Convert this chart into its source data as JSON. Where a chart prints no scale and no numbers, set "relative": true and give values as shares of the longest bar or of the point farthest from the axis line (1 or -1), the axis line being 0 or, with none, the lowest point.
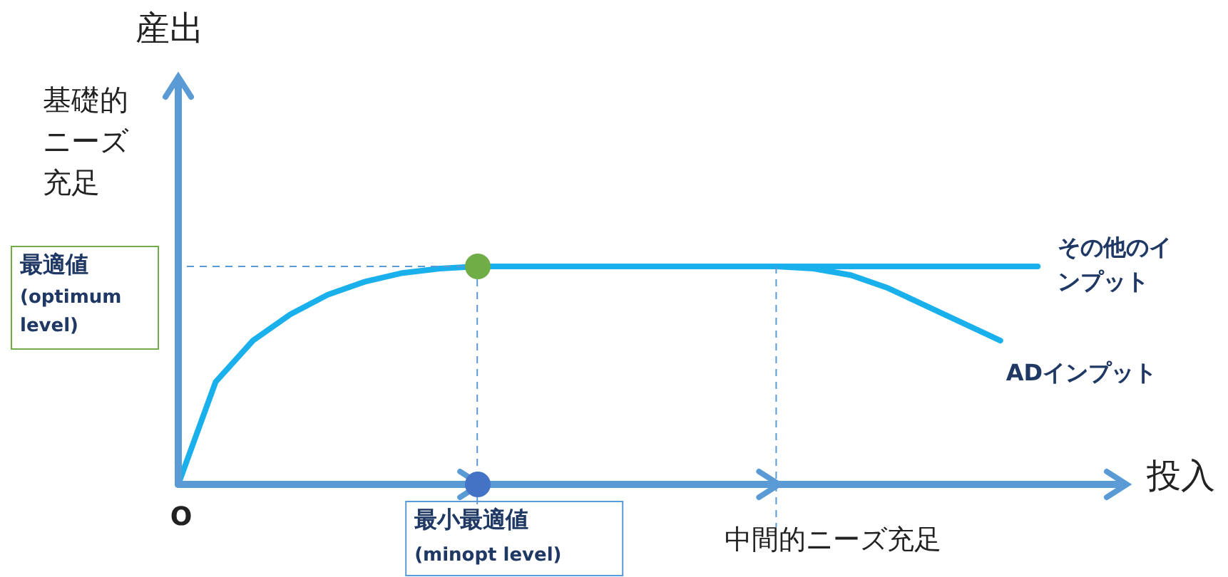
{
  "chart_data": {
    "type": "line",
    "relative": true,
    "legend": false,
    "marker": "none",
    "line_style": "solid",
    "xlabel": "投入",
    "categories": [
      null,
      null,
      null,
      null,
      null,
      null,
      null,
      null,
      null,
      null,
      null,
      null,
      null,
      null,
      null,
      null,
      null,
      null,
      null,
      null,
      null,
      null,
      null,
      null,
      null,
      null
    ],
    "series": [
      {
        "name": "その他のインプット",
        "color": "#1ab0ec",
        "values": [
          0,
          0.47,
          0.66,
          0.78,
          0.87,
          0.93,
          0.97,
          0.99,
          1,
          1,
          1,
          1,
          1,
          1,
          1,
          1,
          1,
          1,
          1,
          1,
          1,
          1,
          1,
          1,
          null,
          null
        ]
      },
      {
        "name": "ADインプット",
        "color": "#1ab0ec",
        "values": [
          null,
          null,
          null,
          null,
          null,
          null,
          null,
          null,
          null,
          null,
          null,
          null,
          null,
          null,
          null,
          null,
          1,
          0.99,
          0.96,
          0.9,
          0.82,
          0.74,
          0.66,
          null,
          null,
          null
        ]
      }
    ],
    "ref_lines": [
      {
        "axis": "y",
        "value": 1,
        "label": "最適値\n(optimum level)",
        "color": "#5b9bd5",
        "line_style": "dashed"
      }
    ],
    "annotations": [
      "産出",
      "基礎的ニーズ充足",
      "O",
      "最小最適値\n(minopt level)",
      "中間的ニーズ充足"
    ]
  }
}
